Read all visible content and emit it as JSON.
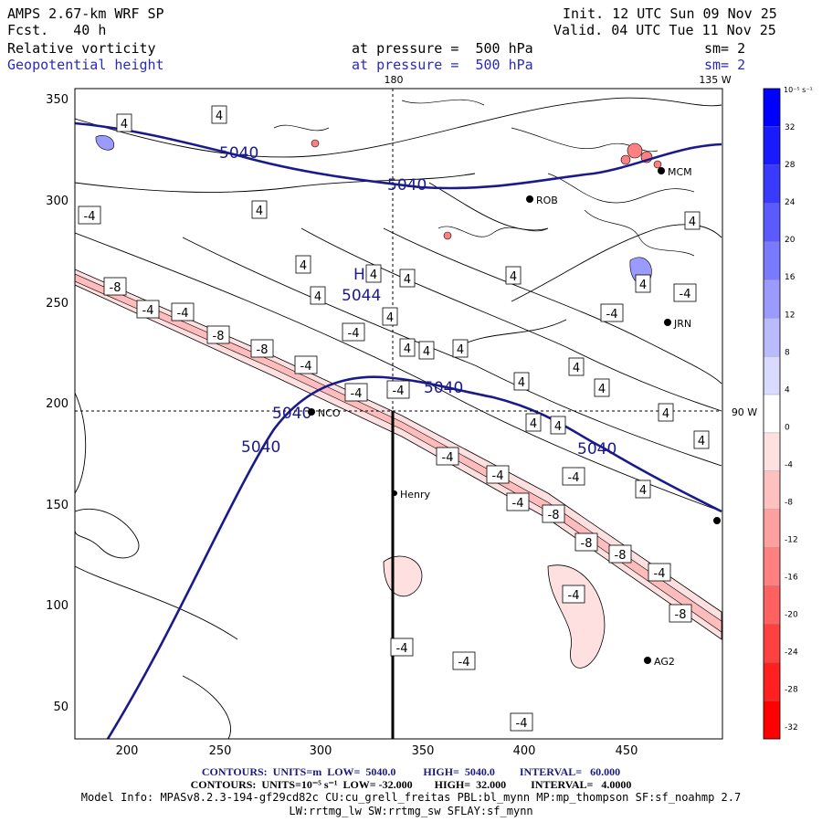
{
  "header": {
    "left1": "AMPS 2.67-km WRF SP",
    "left2": "Fcst.   40 h",
    "init": "Init. 12 UTC Sun 09 Nov 25",
    "valid": "Valid. 04 UTC Tue 11 Nov 25",
    "field1_name": "Relative vorticity",
    "field1_level": "at pressure =  500 hPa",
    "field1_sm": "sm= 2",
    "field2_name": "Geopotential height",
    "field2_level": "at pressure =  500 hPa",
    "field2_sm": "sm= 2"
  },
  "map": {
    "lon_180": "180",
    "lon_135w": "135 W",
    "lon_90w": "90 W",
    "x_ticks": [
      "200",
      "250",
      "300",
      "350",
      "400",
      "450"
    ],
    "y_ticks": [
      "50",
      "100",
      "150",
      "200",
      "250",
      "300",
      "350"
    ],
    "high_label": "H",
    "high_value": "5044",
    "height_labels": [
      "5040",
      "5040",
      "5040",
      "5040",
      "5040",
      "5040"
    ],
    "stations": [
      {
        "name": "NCO"
      },
      {
        "name": "Henry"
      },
      {
        "name": "AG2"
      },
      {
        "name": "MCM"
      },
      {
        "name": "JRN"
      },
      {
        "name": "ROB"
      }
    ],
    "vort_labels_pos": [
      "4",
      "4",
      "4",
      "4",
      "4",
      "4",
      "4",
      "4",
      "4",
      "4",
      "4",
      "4",
      "4",
      "4",
      "4",
      "4",
      "4",
      "4",
      "4",
      "4",
      "4",
      "4"
    ],
    "vort_labels_neg": [
      "-4",
      "-4",
      "-4",
      "-4",
      "-4",
      "-4",
      "-4",
      "-4",
      "-4",
      "-4",
      "-4",
      "-4",
      "-4",
      "-4",
      "-4",
      "-4",
      "-4",
      "-4"
    ],
    "vort_labels_neg8": [
      "-8",
      "-8",
      "-8",
      "-8",
      "-8",
      "-8",
      "-8"
    ]
  },
  "colorbar": {
    "unit": "10⁻⁵ s⁻¹",
    "levels": [
      "32",
      "28",
      "24",
      "20",
      "16",
      "12",
      "8",
      "4",
      "0",
      "-4",
      "-8",
      "-12",
      "-16",
      "-20",
      "-24",
      "-28",
      "-32"
    ],
    "colors": [
      "#0000ff",
      "#1a1aff",
      "#3a3aff",
      "#5a5aff",
      "#7a7aff",
      "#9a9aff",
      "#babaff",
      "#dadaff",
      "#ffffff",
      "#ffe0e0",
      "#ffc0c0",
      "#ffa0a0",
      "#ff8080",
      "#ff6060",
      "#ff4040",
      "#ff2020",
      "#ff0000"
    ]
  },
  "footer": {
    "line1": "CONTOURS:  UNITS=m  LOW=  5040.0          HIGH=  5040.0         INTERVAL=   60.000",
    "line2": "CONTOURS:  UNITS=10⁻⁵ s⁻¹  LOW= -32.000        HIGH=  32.000         INTERVAL=   4.0000",
    "line3": "Model Info: MPASv8.2.3-194-gf29cd82c CU:cu_grell_freitas PBL:bl_mynn MP:mp_thompson SF:sf_noahmp 2.7",
    "line4": "LW:rrtmg_lw SW:rrtmg_sw SFLAY:sf_mynn"
  }
}
